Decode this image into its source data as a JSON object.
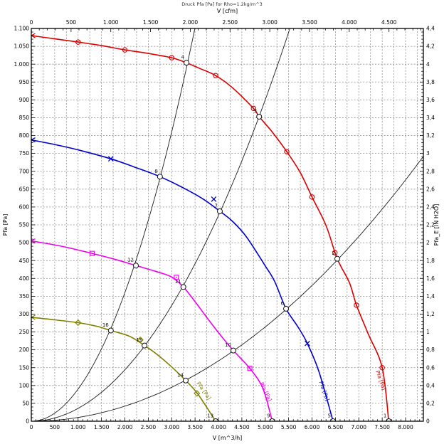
{
  "chart_data": {
    "type": "line",
    "title": "Druck Pfa [Pa] for Rho=1.2kg/m^3",
    "plot": {
      "v_max": 8380,
      "p_max": 1100,
      "grid_x_step": 250,
      "grid_y_step": 50
    },
    "axes": {
      "top": {
        "label": "V [cfm]",
        "m3h_per_cfm": 1.699,
        "tick_step": 500,
        "minor_step": 100,
        "tick_labels": [
          "0",
          "500",
          "1.000",
          "1.500",
          "2.000",
          "2.500",
          "3.000",
          "3.500",
          "4.000",
          "4.500"
        ]
      },
      "bottom": {
        "label": "V [m^3/h]",
        "tick_step": 500,
        "minor_step": 100,
        "tick_labels": [
          "0",
          "500",
          "1.000",
          "1.500",
          "2.000",
          "2.500",
          "3.000",
          "3.500",
          "4.000",
          "4.500",
          "5.000",
          "5.500",
          "6.000",
          "6.500",
          "7.000",
          "7.500",
          "8.000"
        ]
      },
      "left": {
        "label": "Pfa [Pa]",
        "tick_step": 50,
        "minor_step": 10,
        "tick_labels": [
          "1.100",
          "1.050",
          "1.000",
          "950",
          "900",
          "850",
          "800",
          "750",
          "700",
          "650",
          "600",
          "550",
          "500",
          "450",
          "400",
          "350",
          "300",
          "250",
          "200",
          "150",
          "100",
          "50",
          "0"
        ]
      },
      "right": {
        "label": "Pfa_E [IN H2O]",
        "tick_step": 50,
        "minor_step": 12.5,
        "tick_labels": [
          "4,4",
          "4,2",
          "4",
          "3,8",
          "3,6",
          "3,4",
          "3,2",
          "3",
          "2,8",
          "2,6",
          "2,4",
          "2,2",
          "2",
          "1,8",
          "1,6",
          "1,4",
          "1,2",
          "1",
          "0,8",
          "0,6",
          "0,4",
          "0,2",
          "0"
        ]
      }
    },
    "series": [
      {
        "name": "curve-red",
        "color": "#dd0000",
        "marker": "circle-dot",
        "end_label": "Pfa [Pa]",
        "end_label_at": {
          "v": 7360,
          "p": 140,
          "angle": 70
        },
        "points": [
          [
            0,
            1080
          ],
          [
            500,
            1071
          ],
          [
            1000,
            1062
          ],
          [
            1500,
            1052
          ],
          [
            2000,
            1040
          ],
          [
            2500,
            1030
          ],
          [
            3000,
            1018
          ],
          [
            3316,
            1004
          ],
          [
            3600,
            988
          ],
          [
            3940,
            968
          ],
          [
            4300,
            934
          ],
          [
            4750,
            876
          ],
          [
            4870,
            853
          ],
          [
            5150,
            810
          ],
          [
            5460,
            755
          ],
          [
            5750,
            696
          ],
          [
            6000,
            628
          ],
          [
            6300,
            548
          ],
          [
            6540,
            455
          ],
          [
            6800,
            388
          ],
          [
            6950,
            325
          ],
          [
            7200,
            245
          ],
          [
            7500,
            150
          ],
          [
            7640,
            0
          ]
        ],
        "markers": [
          [
            1000,
            1062
          ],
          [
            2000,
            1040
          ],
          [
            3000,
            1018
          ],
          [
            3940,
            968
          ],
          [
            4750,
            876
          ],
          [
            5460,
            755
          ],
          [
            6000,
            628
          ],
          [
            6490,
            472
          ],
          [
            6950,
            325
          ],
          [
            7500,
            150
          ]
        ]
      },
      {
        "name": "curve-blue",
        "color": "#0000cc",
        "marker": "x",
        "end_label": "Pfa [Pa]",
        "end_label_at": {
          "v": 6150,
          "p": 110,
          "angle": 70
        },
        "points": [
          [
            0,
            788
          ],
          [
            500,
            775
          ],
          [
            1000,
            760
          ],
          [
            1700,
            735
          ],
          [
            2200,
            712
          ],
          [
            2750,
            685
          ],
          [
            3300,
            650
          ],
          [
            3700,
            620
          ],
          [
            4030,
            588
          ],
          [
            4300,
            560
          ],
          [
            4600,
            516
          ],
          [
            5000,
            435
          ],
          [
            5200,
            392
          ],
          [
            5445,
            315
          ],
          [
            5700,
            264
          ],
          [
            5900,
            218
          ],
          [
            6150,
            138
          ],
          [
            6450,
            0
          ]
        ],
        "markers": [
          [
            1700,
            735
          ],
          [
            3900,
            622
          ],
          [
            5900,
            218
          ]
        ]
      },
      {
        "name": "curve-magenta",
        "color": "#ee00ee",
        "marker": "square-dot",
        "end_label": "Pfa [Pa]",
        "end_label_at": {
          "v": 4880,
          "p": 106,
          "angle": 64
        },
        "points": [
          [
            0,
            505
          ],
          [
            650,
            490
          ],
          [
            1300,
            470
          ],
          [
            1800,
            453
          ],
          [
            2236,
            436
          ],
          [
            2700,
            418
          ],
          [
            3000,
            404
          ],
          [
            3250,
            376
          ],
          [
            3500,
            335
          ],
          [
            3800,
            282
          ],
          [
            4100,
            232
          ],
          [
            4319,
            198
          ],
          [
            4670,
            148
          ],
          [
            4950,
            92
          ],
          [
            5150,
            0
          ]
        ],
        "markers": [
          [
            1300,
            470
          ],
          [
            3100,
            403
          ],
          [
            4670,
            148
          ]
        ]
      },
      {
        "name": "curve-olive",
        "color": "#808000",
        "marker": "diamond-dot",
        "end_label": "Pfa [Pa]",
        "end_label_at": {
          "v": 3530,
          "p": 106,
          "angle": 55
        },
        "points": [
          [
            0,
            291
          ],
          [
            500,
            284
          ],
          [
            1000,
            276
          ],
          [
            1400,
            266
          ],
          [
            1700,
            254
          ],
          [
            2100,
            238
          ],
          [
            2420,
            212
          ],
          [
            2700,
            186
          ],
          [
            3000,
            152
          ],
          [
            3300,
            114
          ],
          [
            3560,
            76
          ],
          [
            3940,
            0
          ]
        ],
        "markers": [
          [
            1000,
            276
          ],
          [
            2330,
            228
          ],
          [
            3540,
            78
          ]
        ]
      }
    ],
    "system_curves": [
      {
        "name": "system-curve-steep",
        "k": 9e-05
      },
      {
        "name": "system-curve-mid",
        "k": 3.6e-05
      },
      {
        "name": "system-curve-shallow",
        "k": 1.056e-05
      }
    ],
    "operating_points": [
      {
        "label": "1",
        "v": 7640,
        "p": 0
      },
      {
        "label": "2",
        "v": 6540,
        "p": 455
      },
      {
        "label": "3",
        "v": 4870,
        "p": 853
      },
      {
        "label": "4",
        "v": 3316,
        "p": 1004
      },
      {
        "label": "5",
        "v": 6450,
        "p": 0
      },
      {
        "label": "6",
        "v": 5445,
        "p": 315
      },
      {
        "label": "7",
        "v": 4030,
        "p": 588
      },
      {
        "label": "8",
        "v": 2750,
        "p": 685
      },
      {
        "label": "9",
        "v": 5150,
        "p": 0
      },
      {
        "label": "10",
        "v": 4319,
        "p": 198
      },
      {
        "label": "11",
        "v": 3250,
        "p": 376
      },
      {
        "label": "12",
        "v": 2236,
        "p": 436
      },
      {
        "label": "13",
        "v": 3940,
        "p": 0
      },
      {
        "label": "14",
        "v": 3300,
        "p": 114
      },
      {
        "label": "15",
        "v": 2420,
        "p": 212
      },
      {
        "label": "16",
        "v": 1700,
        "p": 254
      }
    ]
  }
}
